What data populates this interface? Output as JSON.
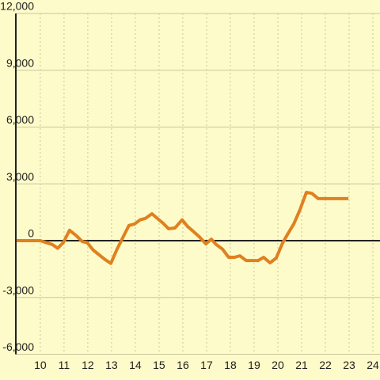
{
  "chart_data": {
    "type": "line",
    "x": [
      9,
      10,
      10.5,
      10.73,
      10.97,
      11.23,
      11.53,
      11.77,
      11.97,
      12.23,
      12.53,
      12.73,
      12.97,
      13.23,
      13.47,
      13.73,
      13.97,
      14.2,
      14.43,
      14.7,
      14.97,
      15.17,
      15.4,
      15.67,
      15.97,
      16.2,
      16.43,
      16.7,
      16.97,
      17.2,
      17.4,
      17.67,
      17.93,
      18.17,
      18.4,
      18.67,
      18.9,
      19.17,
      19.4,
      19.67,
      19.93,
      20.2,
      20.43,
      20.67,
      20.93,
      21.2,
      21.43,
      21.7,
      21.97,
      22.97
    ],
    "series": [
      {
        "color": "#e0801f",
        "values": [
          0,
          0,
          -200,
          -400,
          -100,
          550,
          250,
          -50,
          -100,
          -500,
          -800,
          -1000,
          -1200,
          -450,
          150,
          800,
          880,
          1100,
          1180,
          1420,
          1130,
          920,
          630,
          670,
          1100,
          750,
          500,
          200,
          -170,
          80,
          -200,
          -450,
          -880,
          -880,
          -800,
          -1050,
          -1050,
          -1050,
          -880,
          -1170,
          -920,
          -120,
          380,
          880,
          1630,
          2550,
          2500,
          2220,
          2220,
          2220
        ]
      }
    ],
    "xlim": [
      8.97,
      24.3
    ],
    "xticks": [
      10,
      11,
      12,
      13,
      14,
      15,
      16,
      17,
      18,
      19,
      20,
      21,
      22,
      23,
      24
    ],
    "ylim": [
      -6000,
      12000
    ],
    "yticks": [
      {
        "value": -6000,
        "label": "-6,000"
      },
      {
        "value": -3000,
        "label": "-3,000"
      },
      0,
      {
        "value": 3000,
        "label": "3,000"
      },
      {
        "value": 6000,
        "label": "6,000"
      },
      {
        "value": 9000,
        "label": "9,000"
      },
      {
        "value": 12000,
        "label": "12,000"
      }
    ],
    "grid": true
  }
}
